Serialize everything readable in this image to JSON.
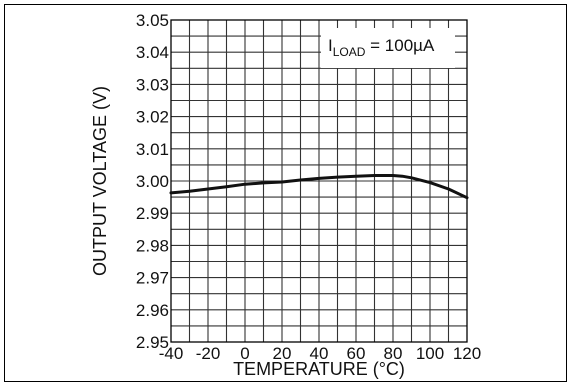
{
  "chart_data": {
    "type": "line",
    "title": "",
    "xlabel": "TEMPERATURE (°C)",
    "ylabel": "OUTPUT VOLTAGE (V)",
    "xlim": [
      -40,
      120
    ],
    "ylim": [
      2.95,
      3.05
    ],
    "x_ticks": [
      "-40",
      "-20",
      "0",
      "20",
      "40",
      "60",
      "80",
      "100",
      "120"
    ],
    "y_ticks": [
      "2.95",
      "2.96",
      "2.97",
      "2.98",
      "2.99",
      "3.00",
      "3.01",
      "3.02",
      "3.03",
      "3.04",
      "3.05"
    ],
    "x_tick_values": [
      -40,
      -20,
      0,
      20,
      40,
      60,
      80,
      100,
      120
    ],
    "y_tick_values": [
      2.95,
      2.96,
      2.97,
      2.98,
      2.99,
      3.0,
      3.01,
      3.02,
      3.03,
      3.04,
      3.05
    ],
    "grid": true,
    "grid_x_step": 10,
    "grid_y_step": 0.005,
    "annotation": {
      "main": "I",
      "sub": "LOAD",
      "rest": " = 100µA",
      "placement": "top-right"
    },
    "series": [
      {
        "x": [
          -40,
          -30,
          -20,
          -10,
          0,
          10,
          20,
          30,
          40,
          50,
          60,
          70,
          80,
          85,
          90,
          100,
          110,
          120
        ],
        "y": [
          2.9963,
          2.9968,
          2.9975,
          2.9982,
          2.999,
          2.9994,
          2.9997,
          3.0003,
          3.0008,
          3.0012,
          3.0015,
          3.0017,
          3.0017,
          3.0015,
          3.001,
          2.9995,
          2.9975,
          2.9948
        ]
      }
    ]
  }
}
